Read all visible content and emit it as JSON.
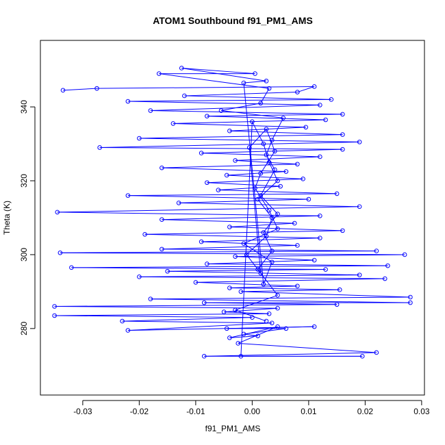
{
  "chart_data": {
    "type": "scatter",
    "title": "ATOM1 Southbound f91_PM1_AMS",
    "xlabel": "f91_PM1_AMS",
    "ylabel": "Theta (K)",
    "xlim": [
      -0.0375,
      0.0305
    ],
    "ylim": [
      262,
      358
    ],
    "x_ticks": [
      -0.03,
      -0.02,
      -0.01,
      0.0,
      0.01,
      0.02,
      0.03
    ],
    "x_tick_labels": [
      "-0.03",
      "-0.02",
      "-0.01",
      "0.00",
      "0.01",
      "0.02",
      "0.03"
    ],
    "y_ticks": [
      280,
      300,
      320,
      340
    ],
    "y_tick_labels": [
      "280",
      "300",
      "320",
      "340"
    ],
    "style": "points-and-lines",
    "color": "#0000ff",
    "series": [
      {
        "name": "f91_PM1_AMS",
        "points": [
          [
            -0.0335,
            344.5
          ],
          [
            -0.0275,
            345
          ],
          [
            0.011,
            345.5
          ],
          [
            0.008,
            344
          ],
          [
            -0.012,
            343
          ],
          [
            0.014,
            342
          ],
          [
            -0.022,
            341.5
          ],
          [
            0.012,
            340.5
          ],
          [
            -0.018,
            339
          ],
          [
            0.016,
            338
          ],
          [
            -0.008,
            337.5
          ],
          [
            0.013,
            336.5
          ],
          [
            -0.014,
            335.5
          ],
          [
            0.0095,
            334.5
          ],
          [
            -0.004,
            333.5
          ],
          [
            0.016,
            332.5
          ],
          [
            -0.02,
            331.5
          ],
          [
            0.019,
            330.5
          ],
          [
            -0.027,
            329
          ],
          [
            0.016,
            328.5
          ],
          [
            -0.009,
            327.5
          ],
          [
            0.012,
            326.5
          ],
          [
            -0.003,
            325.5
          ],
          [
            0.008,
            324.5
          ],
          [
            -0.016,
            323.5
          ],
          [
            0.006,
            322.5
          ],
          [
            -0.0045,
            321.5
          ],
          [
            0.009,
            320.5
          ],
          [
            -0.008,
            319.5
          ],
          [
            0.005,
            318.5
          ],
          [
            -0.006,
            317.5
          ],
          [
            0.015,
            316.5
          ],
          [
            -0.022,
            316
          ],
          [
            0.01,
            315
          ],
          [
            -0.013,
            314
          ],
          [
            0.019,
            313
          ],
          [
            -0.0345,
            311.5
          ],
          [
            0.012,
            310.5
          ],
          [
            -0.016,
            309.5
          ],
          [
            0.0075,
            308.5
          ],
          [
            -0.004,
            307.5
          ],
          [
            0.016,
            306.5
          ],
          [
            -0.019,
            305.5
          ],
          [
            0.012,
            304.5
          ],
          [
            -0.009,
            303.5
          ],
          [
            0.008,
            302.5
          ],
          [
            -0.016,
            301.5
          ],
          [
            0.022,
            301
          ],
          [
            -0.034,
            300.5
          ],
          [
            0.027,
            300
          ],
          [
            -0.003,
            299.5
          ],
          [
            0.011,
            298.5
          ],
          [
            -0.008,
            297.5
          ],
          [
            0.024,
            297
          ],
          [
            -0.032,
            296.5
          ],
          [
            0.013,
            296
          ],
          [
            -0.015,
            295.5
          ],
          [
            0.019,
            294.5
          ],
          [
            -0.02,
            294
          ],
          [
            0.0235,
            293.5
          ],
          [
            -0.01,
            292.5
          ],
          [
            0.008,
            291.5
          ],
          [
            -0.004,
            291
          ],
          [
            0.0155,
            290.5
          ],
          [
            -0.002,
            290
          ],
          [
            0.028,
            288.5
          ],
          [
            -0.018,
            288
          ],
          [
            0.028,
            287
          ],
          [
            -0.0085,
            287
          ],
          [
            0.015,
            286.5
          ],
          [
            -0.035,
            286
          ],
          [
            0.0045,
            285.5
          ],
          [
            -0.005,
            284.5
          ],
          [
            0.003,
            284
          ],
          [
            -0.035,
            283.5
          ],
          [
            0.0,
            283
          ],
          [
            -0.023,
            282
          ],
          [
            0.0035,
            281.5
          ],
          [
            -0.022,
            279.5
          ],
          [
            0.011,
            280.5
          ],
          [
            -0.0045,
            280
          ],
          [
            0.006,
            280
          ],
          [
            -0.0015,
            278.5
          ],
          [
            0.001,
            278
          ],
          [
            -0.004,
            277.5
          ],
          [
            0.0045,
            280.5
          ],
          [
            -0.0025,
            276
          ],
          [
            0.022,
            273.5
          ],
          [
            -0.0085,
            272.5
          ],
          [
            0.0195,
            272.5
          ],
          [
            -0.002,
            272.5
          ],
          [
            0.0,
            336
          ],
          [
            0.002,
            330
          ],
          [
            0.003,
            325
          ],
          [
            0.0045,
            320
          ],
          [
            0.001,
            315
          ],
          [
            0.0035,
            310
          ],
          [
            0.0025,
            305
          ],
          [
            -0.001,
            300
          ],
          [
            0.0015,
            295
          ],
          [
            -0.0005,
            329
          ],
          [
            0.0025,
            334
          ],
          [
            0.004,
            328
          ],
          [
            0.0015,
            322
          ],
          [
            0.0005,
            318
          ],
          [
            0.003,
            312
          ],
          [
            0.0045,
            307
          ],
          [
            -0.0015,
            303
          ],
          [
            0.0035,
            298
          ],
          [
            0.002,
            292
          ],
          [
            -0.0015,
            346.5
          ],
          [
            0.0025,
            347
          ],
          [
            -0.0125,
            350.5
          ],
          [
            0.0005,
            349
          ],
          [
            -0.0165,
            349
          ],
          [
            0.003,
            345
          ],
          [
            0.0015,
            341
          ],
          [
            -0.0055,
            339
          ],
          [
            0.0055,
            337
          ],
          [
            0.0035,
            331
          ],
          [
            0.0025,
            327
          ],
          [
            0.004,
            323
          ],
          [
            0.0015,
            316
          ],
          [
            0.0045,
            311
          ],
          [
            0.002,
            306
          ],
          [
            0.0035,
            301
          ],
          [
            0.001,
            296
          ],
          [
            0.0045,
            289
          ],
          [
            -0.003,
            285
          ],
          [
            0.0025,
            282
          ]
        ]
      }
    ]
  }
}
